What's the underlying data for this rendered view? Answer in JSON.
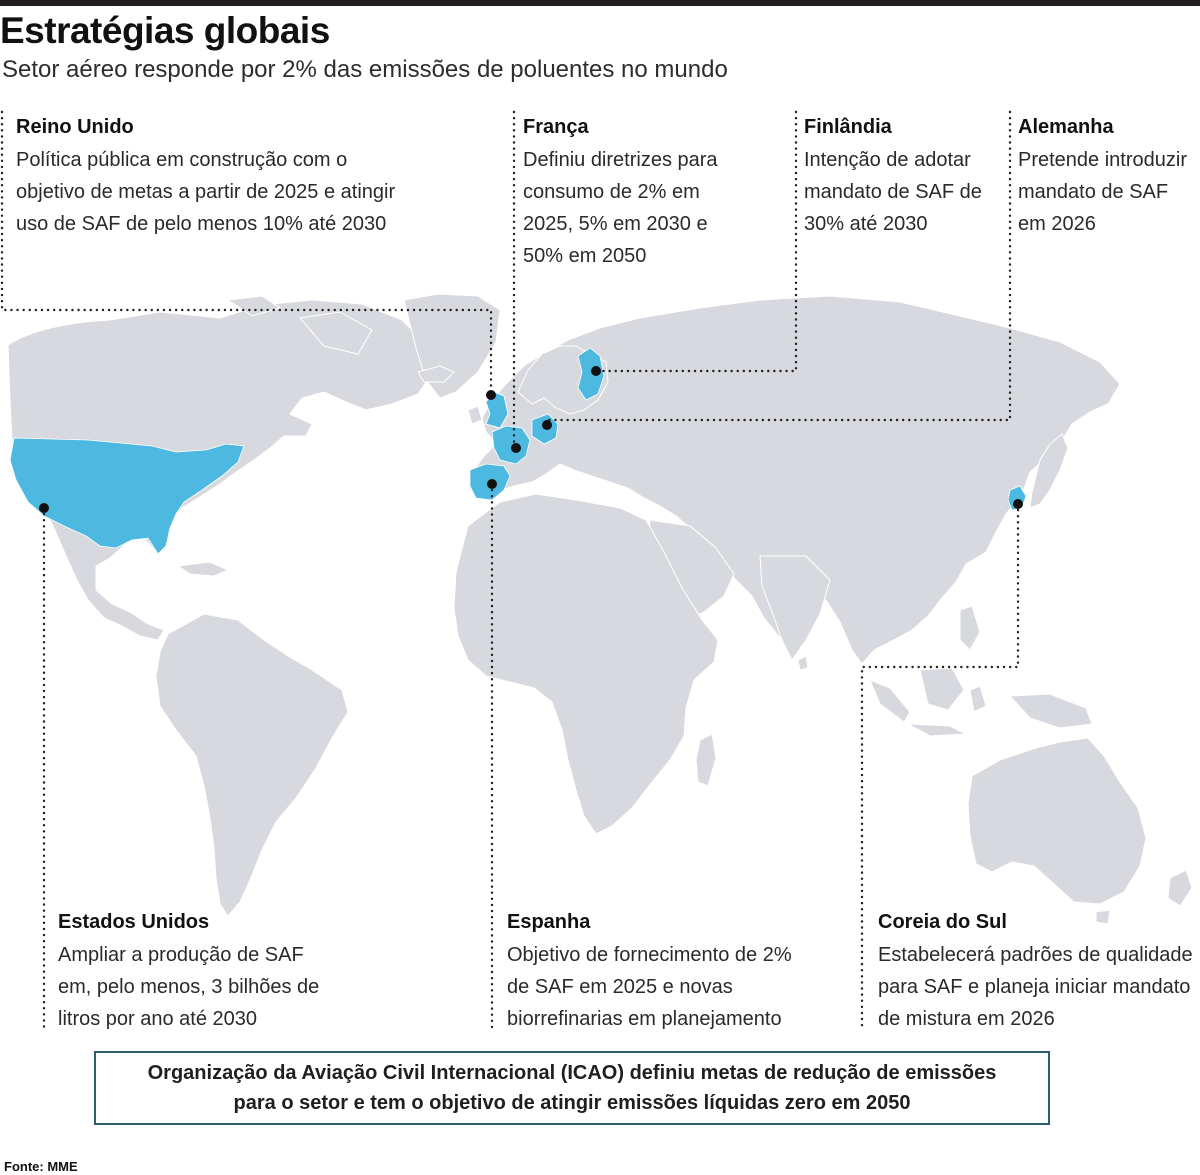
{
  "header": {
    "title": "Estratégias globais",
    "subtitle": "Setor aéreo responde por 2% das emissões de poluentes no mundo"
  },
  "colors": {
    "land": "#d7d9de",
    "highlight": "#4db8e0",
    "marker": "#111111",
    "leader_line": "#222222",
    "box_border": "#2f5f6b"
  },
  "countries": [
    {
      "id": "reino-unido",
      "name": "Reino Unido",
      "lines": [
        "Política pública em construção com o",
        "objetivo de metas a partir de 2025 e atingir",
        "uso de SAF de pelo menos 10% até 2030"
      ]
    },
    {
      "id": "franca",
      "name": "França",
      "lines": [
        "Definiu diretrizes para",
        "consumo de 2% em",
        "2025, 5% em 2030 e",
        "50% em 2050"
      ]
    },
    {
      "id": "finlandia",
      "name": "Finlândia",
      "lines": [
        "Intenção de adotar",
        "mandato de SAF de",
        "30% até 2030"
      ]
    },
    {
      "id": "alemanha",
      "name": "Alemanha",
      "lines": [
        "Pretende introduzir",
        "mandato de SAF",
        "em 2026"
      ]
    },
    {
      "id": "estados-unidos",
      "name": "Estados Unidos",
      "lines": [
        "Ampliar a produção de SAF",
        "em, pelo menos, 3 bilhões de",
        "litros por ano até 2030"
      ]
    },
    {
      "id": "espanha",
      "name": "Espanha",
      "lines": [
        "Objetivo de fornecimento de 2%",
        "de SAF em 2025 e novas",
        "biorrefinarias em planejamento"
      ]
    },
    {
      "id": "coreia-do-sul",
      "name": "Coreia do Sul",
      "lines": [
        "Estabelecerá padrões de qualidade",
        "para SAF e planeja iniciar mandato",
        "de mistura em 2026"
      ]
    }
  ],
  "icao": {
    "line1": "Organização da Aviação Civil Internacional (ICAO) definiu metas de redução de emissões",
    "line2": "para o setor e tem o objetivo de atingir emissões líquidas zero em 2050"
  },
  "source": "Fonte: MME"
}
